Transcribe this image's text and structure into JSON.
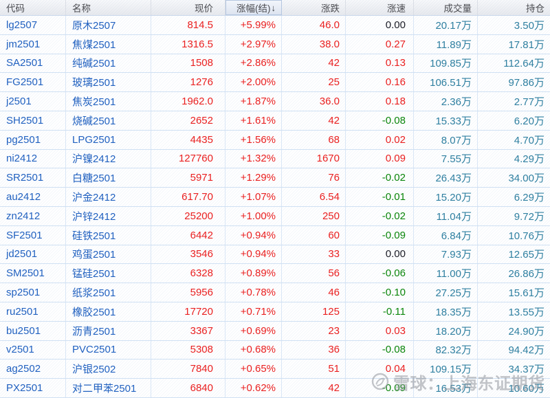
{
  "table": {
    "columns": [
      {
        "key": "code",
        "label": "代码"
      },
      {
        "key": "name",
        "label": "名称"
      },
      {
        "key": "price",
        "label": "现价"
      },
      {
        "key": "pct",
        "label": "涨幅(结)",
        "sort_arrow": "↓",
        "sorted": "desc"
      },
      {
        "key": "change",
        "label": "涨跌"
      },
      {
        "key": "speed",
        "label": "涨速"
      },
      {
        "key": "volume",
        "label": "成交量"
      },
      {
        "key": "oi",
        "label": "持仓"
      }
    ],
    "rows": [
      {
        "code": "lg2507",
        "name": "原木2507",
        "price": "814.5",
        "pct": "+5.99%",
        "change": "46.0",
        "speed": "0.00",
        "volume": "20.17万",
        "oi": "3.50万"
      },
      {
        "code": "jm2501",
        "name": "焦煤2501",
        "price": "1316.5",
        "pct": "+2.97%",
        "change": "38.0",
        "speed": "0.27",
        "volume": "11.89万",
        "oi": "17.81万"
      },
      {
        "code": "SA2501",
        "name": "纯碱2501",
        "price": "1508",
        "pct": "+2.86%",
        "change": "42",
        "speed": "0.13",
        "volume": "109.85万",
        "oi": "112.64万"
      },
      {
        "code": "FG2501",
        "name": "玻璃2501",
        "price": "1276",
        "pct": "+2.00%",
        "change": "25",
        "speed": "0.16",
        "volume": "106.51万",
        "oi": "97.86万"
      },
      {
        "code": "j2501",
        "name": "焦炭2501",
        "price": "1962.0",
        "pct": "+1.87%",
        "change": "36.0",
        "speed": "0.18",
        "volume": "2.36万",
        "oi": "2.77万"
      },
      {
        "code": "SH2501",
        "name": "烧碱2501",
        "price": "2652",
        "pct": "+1.61%",
        "change": "42",
        "speed": "-0.08",
        "volume": "15.33万",
        "oi": "6.20万"
      },
      {
        "code": "pg2501",
        "name": "LPG2501",
        "price": "4435",
        "pct": "+1.56%",
        "change": "68",
        "speed": "0.02",
        "volume": "8.07万",
        "oi": "4.70万"
      },
      {
        "code": "ni2412",
        "name": "沪镍2412",
        "price": "127760",
        "pct": "+1.32%",
        "change": "1670",
        "speed": "0.09",
        "volume": "7.55万",
        "oi": "4.29万"
      },
      {
        "code": "SR2501",
        "name": "白糖2501",
        "price": "5971",
        "pct": "+1.29%",
        "change": "76",
        "speed": "-0.02",
        "volume": "26.43万",
        "oi": "34.00万"
      },
      {
        "code": "au2412",
        "name": "沪金2412",
        "price": "617.70",
        "pct": "+1.07%",
        "change": "6.54",
        "speed": "-0.01",
        "volume": "15.20万",
        "oi": "6.29万"
      },
      {
        "code": "zn2412",
        "name": "沪锌2412",
        "price": "25200",
        "pct": "+1.00%",
        "change": "250",
        "speed": "-0.02",
        "volume": "11.04万",
        "oi": "9.72万"
      },
      {
        "code": "SF2501",
        "name": "硅铁2501",
        "price": "6442",
        "pct": "+0.94%",
        "change": "60",
        "speed": "-0.09",
        "volume": "6.84万",
        "oi": "10.76万"
      },
      {
        "code": "jd2501",
        "name": "鸡蛋2501",
        "price": "3546",
        "pct": "+0.94%",
        "change": "33",
        "speed": "0.00",
        "volume": "7.93万",
        "oi": "12.65万"
      },
      {
        "code": "SM2501",
        "name": "锰硅2501",
        "price": "6328",
        "pct": "+0.89%",
        "change": "56",
        "speed": "-0.06",
        "volume": "11.00万",
        "oi": "26.86万"
      },
      {
        "code": "sp2501",
        "name": "纸浆2501",
        "price": "5956",
        "pct": "+0.78%",
        "change": "46",
        "speed": "-0.10",
        "volume": "27.25万",
        "oi": "15.61万"
      },
      {
        "code": "ru2501",
        "name": "橡胶2501",
        "price": "17720",
        "pct": "+0.71%",
        "change": "125",
        "speed": "-0.11",
        "volume": "18.35万",
        "oi": "13.55万"
      },
      {
        "code": "bu2501",
        "name": "沥青2501",
        "price": "3367",
        "pct": "+0.69%",
        "change": "23",
        "speed": "0.03",
        "volume": "18.20万",
        "oi": "24.90万"
      },
      {
        "code": "v2501",
        "name": "PVC2501",
        "price": "5308",
        "pct": "+0.68%",
        "change": "36",
        "speed": "-0.08",
        "volume": "82.32万",
        "oi": "94.42万"
      },
      {
        "code": "ag2502",
        "name": "沪银2502",
        "price": "7840",
        "pct": "+0.65%",
        "change": "51",
        "speed": "0.04",
        "volume": "109.15万",
        "oi": "34.37万"
      },
      {
        "code": "PX2501",
        "name": "对二甲苯2501",
        "price": "6840",
        "pct": "+0.62%",
        "change": "42",
        "speed": "-0.09",
        "volume": "16.53万",
        "oi": "10.60万"
      }
    ]
  },
  "watermark": {
    "logo": "xueqiu-logo",
    "text": "雪球：上海东证期货"
  },
  "colors": {
    "up": "#ea2020",
    "down": "#0b860b",
    "flat": "#1b1c26",
    "code_blue": "#2161c0",
    "volume_teal": "#2e7fa0",
    "row_separator": "#cfe0f3"
  }
}
